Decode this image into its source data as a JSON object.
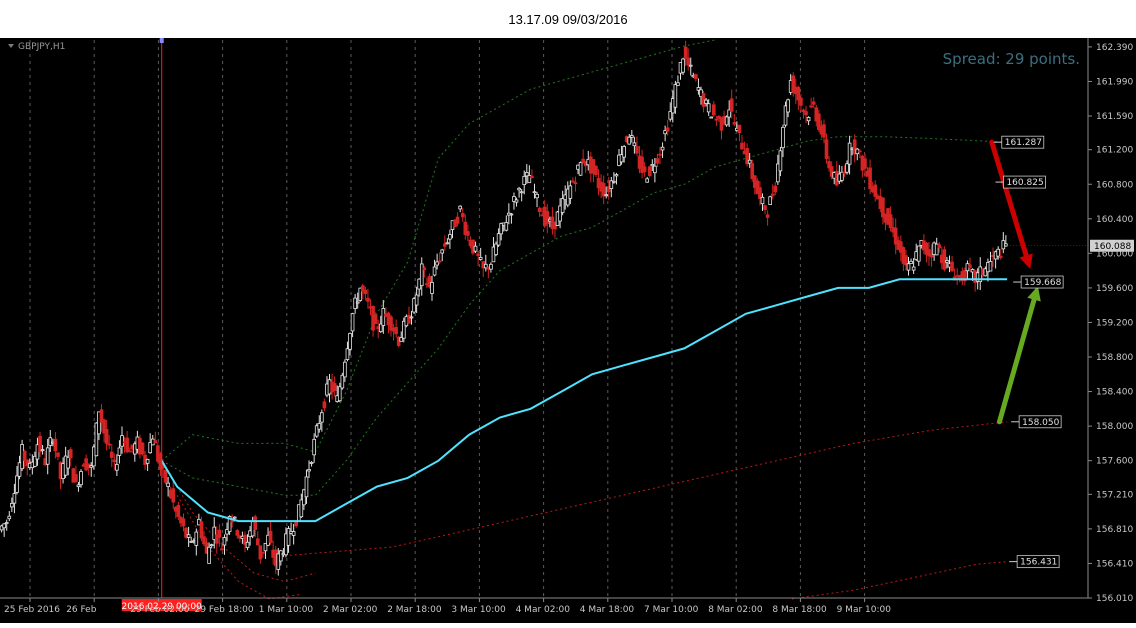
{
  "window_title": "13.17.09 09/03/2016",
  "chart_data": {
    "type": "candlestick",
    "symbol_label": "GBPJPY,H1",
    "spread_label": "Spread: 29 points.",
    "ylim": [
      156.01,
      162.47
    ],
    "y_ticks": [
      "162.390",
      "161.990",
      "161.590",
      "161.200",
      "160.800",
      "160.400",
      "160.000",
      "159.600",
      "159.200",
      "158.800",
      "158.400",
      "158.000",
      "157.600",
      "157.210",
      "156.810",
      "156.410",
      "156.010"
    ],
    "x_labels": [
      "25 Feb 2016",
      "26 Feb",
      "29 Feb 02:00",
      "29 Feb 18:00",
      "1 Mar 10:00",
      "2 Mar 02:00",
      "2 Mar 18:00",
      "3 Mar 10:00",
      "4 Mar 02:00",
      "4 Mar 18:00",
      "7 Mar 10:00",
      "8 Mar 02:00",
      "8 Mar 18:00",
      "9 Mar 10:00"
    ],
    "vertical_line_label": "2016.02.29 00:00",
    "current_price": "160.088",
    "level_labels": [
      "161.287",
      "160.825",
      "159.668",
      "158.050",
      "156.431"
    ],
    "close_path": [
      [
        0,
        156.9
      ],
      [
        1,
        157.3
      ],
      [
        2,
        157.7
      ],
      [
        3,
        157.5
      ],
      [
        4,
        157.8
      ],
      [
        5,
        157.6
      ],
      [
        6,
        157.9
      ],
      [
        7,
        157.4
      ],
      [
        8,
        157.7
      ],
      [
        9,
        157.3
      ],
      [
        10,
        157.6
      ],
      [
        11,
        157.5
      ],
      [
        12,
        158.2
      ],
      [
        13,
        157.8
      ],
      [
        14,
        157.5
      ],
      [
        15,
        157.9
      ],
      [
        16,
        157.7
      ],
      [
        17,
        157.8
      ],
      [
        18,
        157.6
      ],
      [
        19,
        157.9
      ],
      [
        20,
        157.5
      ],
      [
        21,
        157.3
      ],
      [
        22,
        157.0
      ],
      [
        23,
        156.8
      ],
      [
        24,
        156.6
      ],
      [
        25,
        156.9
      ],
      [
        26,
        156.5
      ],
      [
        27,
        156.8
      ],
      [
        28,
        156.6
      ],
      [
        29,
        157.0
      ],
      [
        30,
        156.8
      ],
      [
        31,
        156.6
      ],
      [
        32,
        156.9
      ],
      [
        33,
        156.5
      ],
      [
        34,
        156.7
      ],
      [
        35,
        156.4
      ],
      [
        36,
        156.6
      ],
      [
        37,
        156.8
      ],
      [
        38,
        157.0
      ],
      [
        39,
        157.4
      ],
      [
        40,
        157.8
      ],
      [
        41,
        158.2
      ],
      [
        42,
        158.5
      ],
      [
        43,
        158.3
      ],
      [
        44,
        158.8
      ],
      [
        45,
        159.3
      ],
      [
        46,
        159.6
      ],
      [
        47,
        159.4
      ],
      [
        48,
        159.1
      ],
      [
        49,
        159.3
      ],
      [
        50,
        159.2
      ],
      [
        51,
        159.0
      ],
      [
        52,
        159.2
      ],
      [
        53,
        159.4
      ],
      [
        54,
        159.8
      ],
      [
        55,
        159.6
      ],
      [
        56,
        159.9
      ],
      [
        57,
        160.1
      ],
      [
        58,
        160.3
      ],
      [
        59,
        160.5
      ],
      [
        60,
        160.2
      ],
      [
        61,
        160.0
      ],
      [
        62,
        159.8
      ],
      [
        63,
        159.9
      ],
      [
        64,
        160.2
      ],
      [
        65,
        160.4
      ],
      [
        66,
        160.6
      ],
      [
        67,
        160.8
      ],
      [
        68,
        160.9
      ],
      [
        69,
        160.6
      ],
      [
        70,
        160.4
      ],
      [
        71,
        160.3
      ],
      [
        72,
        160.5
      ],
      [
        73,
        160.7
      ],
      [
        74,
        160.9
      ],
      [
        75,
        161.1
      ],
      [
        76,
        161.0
      ],
      [
        77,
        160.8
      ],
      [
        78,
        160.7
      ],
      [
        79,
        160.9
      ],
      [
        80,
        161.2
      ],
      [
        81,
        161.4
      ],
      [
        82,
        161.1
      ],
      [
        83,
        160.9
      ],
      [
        84,
        161.0
      ],
      [
        85,
        161.2
      ],
      [
        86,
        161.5
      ],
      [
        87,
        161.9
      ],
      [
        88,
        162.3
      ],
      [
        89,
        162.1
      ],
      [
        90,
        161.9
      ],
      [
        91,
        161.7
      ],
      [
        92,
        161.6
      ],
      [
        93,
        161.5
      ],
      [
        94,
        161.7
      ],
      [
        95,
        161.4
      ],
      [
        96,
        161.2
      ],
      [
        97,
        160.9
      ],
      [
        98,
        160.6
      ],
      [
        99,
        160.5
      ],
      [
        100,
        160.8
      ],
      [
        101,
        161.5
      ],
      [
        102,
        162.0
      ],
      [
        103,
        161.8
      ],
      [
        104,
        161.6
      ],
      [
        105,
        161.7
      ],
      [
        106,
        161.4
      ],
      [
        107,
        161.0
      ],
      [
        108,
        160.8
      ],
      [
        109,
        161.0
      ],
      [
        110,
        161.3
      ],
      [
        111,
        161.1
      ],
      [
        112,
        160.9
      ],
      [
        113,
        160.7
      ],
      [
        114,
        160.5
      ],
      [
        115,
        160.3
      ],
      [
        116,
        160.1
      ],
      [
        117,
        159.8
      ],
      [
        118,
        159.9
      ],
      [
        119,
        160.1
      ],
      [
        120,
        160.0
      ],
      [
        121,
        160.1
      ],
      [
        122,
        159.9
      ],
      [
        123,
        159.8
      ],
      [
        124,
        159.7
      ],
      [
        125,
        159.8
      ],
      [
        126,
        159.7
      ],
      [
        127,
        159.8
      ],
      [
        128,
        159.9
      ],
      [
        129,
        160.0
      ],
      [
        130,
        160.088
      ]
    ],
    "ma_cyan_path": [
      [
        20,
        157.6
      ],
      [
        22,
        157.3
      ],
      [
        26,
        157.0
      ],
      [
        30,
        156.9
      ],
      [
        36,
        156.9
      ],
      [
        40,
        156.9
      ],
      [
        44,
        157.1
      ],
      [
        48,
        157.3
      ],
      [
        52,
        157.4
      ],
      [
        56,
        157.6
      ],
      [
        60,
        157.9
      ],
      [
        64,
        158.1
      ],
      [
        68,
        158.2
      ],
      [
        72,
        158.4
      ],
      [
        76,
        158.6
      ],
      [
        80,
        158.7
      ],
      [
        84,
        158.8
      ],
      [
        88,
        158.9
      ],
      [
        92,
        159.1
      ],
      [
        96,
        159.3
      ],
      [
        100,
        159.4
      ],
      [
        104,
        159.5
      ],
      [
        108,
        159.6
      ],
      [
        112,
        159.6
      ],
      [
        116,
        159.7
      ],
      [
        120,
        159.7
      ],
      [
        125,
        159.7
      ],
      [
        130,
        159.7
      ]
    ],
    "green_upper_path": [
      [
        20,
        157.6
      ],
      [
        24,
        157.9
      ],
      [
        30,
        157.8
      ],
      [
        36,
        157.8
      ],
      [
        40,
        157.7
      ],
      [
        44,
        158.4
      ],
      [
        48,
        159.3
      ],
      [
        52,
        159.9
      ],
      [
        56,
        161.1
      ],
      [
        60,
        161.5
      ],
      [
        64,
        161.7
      ],
      [
        68,
        161.9
      ],
      [
        72,
        162.0
      ],
      [
        76,
        162.1
      ],
      [
        80,
        162.2
      ],
      [
        84,
        162.3
      ],
      [
        88,
        162.4
      ],
      [
        92,
        162.47
      ]
    ],
    "green_lower_path": [
      [
        20,
        157.6
      ],
      [
        24,
        157.4
      ],
      [
        30,
        157.3
      ],
      [
        36,
        157.2
      ],
      [
        40,
        157.2
      ],
      [
        44,
        157.6
      ],
      [
        48,
        158.1
      ],
      [
        52,
        158.5
      ],
      [
        56,
        158.9
      ],
      [
        60,
        159.4
      ],
      [
        64,
        159.8
      ],
      [
        68,
        160.0
      ],
      [
        72,
        160.2
      ],
      [
        76,
        160.3
      ],
      [
        80,
        160.5
      ],
      [
        84,
        160.7
      ],
      [
        88,
        160.8
      ],
      [
        92,
        161.0
      ],
      [
        96,
        161.1
      ],
      [
        100,
        161.2
      ],
      [
        104,
        161.3
      ],
      [
        108,
        161.35
      ],
      [
        114,
        161.35
      ],
      [
        120,
        161.33
      ],
      [
        130,
        161.287
      ]
    ],
    "red_dashed_paths": [
      [
        [
          20,
          157.6
        ],
        [
          24,
          157.0
        ],
        [
          28,
          156.6
        ],
        [
          32,
          156.3
        ],
        [
          36,
          156.2
        ],
        [
          40,
          156.3
        ]
      ],
      [
        [
          22,
          157.2
        ],
        [
          26,
          156.6
        ],
        [
          30,
          156.2
        ],
        [
          34,
          156.0
        ],
        [
          38,
          156.05
        ]
      ],
      [
        [
          36,
          156.5
        ],
        [
          50,
          156.6
        ],
        [
          60,
          156.8
        ],
        [
          70,
          157.0
        ],
        [
          80,
          157.2
        ],
        [
          90,
          157.4
        ],
        [
          100,
          157.6
        ],
        [
          110,
          157.8
        ],
        [
          120,
          157.95
        ],
        [
          130,
          158.05
        ]
      ],
      [
        [
          102,
          156.0
        ],
        [
          110,
          156.1
        ],
        [
          118,
          156.25
        ],
        [
          126,
          156.4
        ],
        [
          130,
          156.431
        ]
      ]
    ],
    "vertical_line_index": 20,
    "index_range": [
      0,
      140
    ],
    "arrows": [
      {
        "color": "#cc0000",
        "from": [
          128,
          161.287
        ],
        "to": [
          133,
          159.82
        ]
      },
      {
        "color": "#66aa22",
        "from": [
          129,
          158.05
        ],
        "to": [
          134,
          159.62
        ]
      }
    ]
  }
}
